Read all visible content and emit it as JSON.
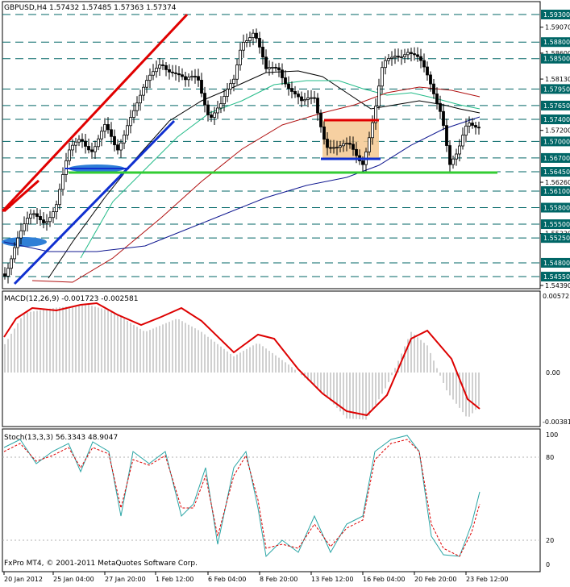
{
  "main": {
    "header": "GBPUSD,H4  1.57432 1.57485 1.57363 1.57374",
    "price_levels": [
      {
        "value": "1.59300",
        "highlight": true
      },
      {
        "value": "1.59070",
        "highlight": false
      },
      {
        "value": "1.58800",
        "highlight": true
      },
      {
        "value": "1.58600",
        "highlight": false
      },
      {
        "value": "1.58500",
        "highlight": true
      },
      {
        "value": "1.58130",
        "highlight": false
      },
      {
        "value": "1.57950",
        "highlight": true
      },
      {
        "value": "1.57650",
        "highlight": true
      },
      {
        "value": "1.57400",
        "highlight": true
      },
      {
        "value": "1.57200",
        "highlight": false
      },
      {
        "value": "1.57000",
        "highlight": true
      },
      {
        "value": "1.56700",
        "highlight": true
      },
      {
        "value": "1.56450",
        "highlight": true
      },
      {
        "value": "1.56260",
        "highlight": false
      },
      {
        "value": "1.56100",
        "highlight": true
      },
      {
        "value": "1.55800",
        "highlight": true
      },
      {
        "value": "1.55500",
        "highlight": true
      },
      {
        "value": "1.55330",
        "highlight": false
      },
      {
        "value": "1.55250",
        "highlight": true
      },
      {
        "value": "1.54800",
        "highlight": true
      },
      {
        "value": "1.54550",
        "highlight": true
      },
      {
        "value": "1.54390",
        "highlight": false
      }
    ]
  },
  "macd": {
    "header": "MACD(12,26,9) -0.001723 -0.002581",
    "ticks": [
      "0.00572",
      "0.00",
      "-0.00381"
    ]
  },
  "stoch": {
    "header": "Stoch(13,3,3) 56.3343 48.9047",
    "ticks": [
      "100",
      "80",
      "20",
      "0"
    ]
  },
  "footer": "FxPro MT4, © 2001-2011 MetaQuotes Software Corp.",
  "time_labels": [
    "20 Jan 2012",
    "25 Jan 04:00",
    "27 Jan 20:00",
    "1 Feb 12:00",
    "6 Feb 04:00",
    "8 Feb 20:00",
    "13 Feb 12:00",
    "16 Feb 04:00",
    "20 Feb 20:00",
    "23 Feb 12:00"
  ],
  "colors": {
    "candle": "#000000",
    "level_fill": "#006666",
    "trend_up": "#e00000",
    "trend_blue": "#1030d0",
    "support": "#33cc33",
    "box": "#f5c890",
    "macd_signal": "#dd0000",
    "stoch_main": "#2aa5a5",
    "stoch_signal": "#dd0000"
  },
  "chart_data": [
    {
      "type": "line",
      "title": "GBPUSD,H4",
      "ylim": [
        1.5439,
        1.593
      ],
      "x": [
        "20 Jan 2012",
        "25 Jan 04:00",
        "27 Jan 20:00",
        "1 Feb 12:00",
        "6 Feb 04:00",
        "8 Feb 20:00",
        "13 Feb 12:00",
        "16 Feb 04:00",
        "20 Feb 20:00",
        "23 Feb 12:00"
      ],
      "series": [
        {
          "name": "GBPUSD,H4",
          "values": [
            1.548,
            1.567,
            1.57,
            1.585,
            1.58,
            1.585,
            1.568,
            1.588,
            1.566,
            1.574
          ]
        }
      ],
      "last": {
        "open": 1.57432,
        "high": 1.57485,
        "low": 1.57363,
        "close": 1.57374
      },
      "horizontal_levels": [
        1.593,
        1.588,
        1.585,
        1.5795,
        1.5765,
        1.574,
        1.57,
        1.567,
        1.5645,
        1.561,
        1.558,
        1.555,
        1.5525,
        1.548,
        1.5455
      ]
    },
    {
      "type": "line",
      "title": "MACD(12,26,9)",
      "ylim": [
        -0.00381,
        0.00572
      ],
      "series": [
        {
          "name": "MACD(12,26,9)",
          "values": [
            0.003,
            0.0045,
            0.0042,
            0.0044,
            0.0048,
            0.004,
            0.0038,
            0.0044,
            0.0026,
            0.0015,
            0.0028,
            0.0012,
            -0.001,
            -0.003,
            -0.0036,
            -0.003,
            0.0005,
            0.0027,
            0.0012,
            -0.0022,
            -0.003
          ]
        }
      ],
      "last": {
        "main": -0.001723,
        "signal": -0.002581
      }
    },
    {
      "type": "line",
      "title": "Stoch(13,3,3)",
      "ylim": [
        0,
        100
      ],
      "series": [
        {
          "name": "Stoch(13,3,3)",
          "values": [
            90,
            85,
            65,
            95,
            30,
            90,
            80,
            20,
            75,
            60,
            90,
            25,
            85,
            10,
            30,
            15,
            60,
            95,
            90,
            10,
            5,
            10,
            56
          ]
        }
      ],
      "last": {
        "main": 56.3343,
        "signal": 48.9047
      }
    }
  ]
}
